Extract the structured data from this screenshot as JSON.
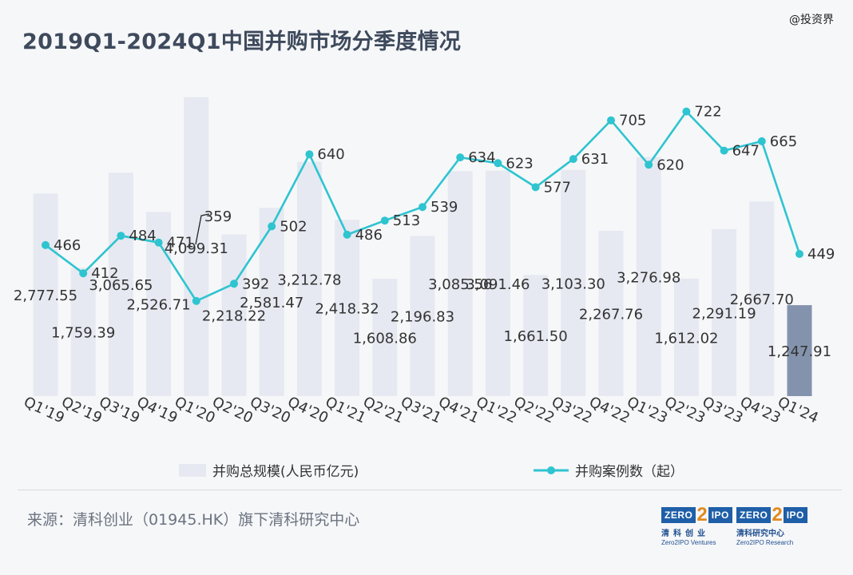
{
  "title": "2019Q1-2024Q1中国并购市场分季度情况",
  "watermark": "@投资界",
  "source": "来源：清科创业（01945.HK）旗下清科研究中心",
  "logos": [
    {
      "top_left": "ZERO",
      "top_mid": "2",
      "top_right": "IPO",
      "cn": "清科创业",
      "en": "Zero2IPO Ventures"
    },
    {
      "top_left": "ZERO",
      "top_mid": "2",
      "top_right": "IPO",
      "cn": "清科研究中心",
      "en": "Zero2IPO Research"
    }
  ],
  "colors": {
    "bar": "#e6e9f1",
    "bar_highlight": "#8493ad",
    "line": "#2ec4d0",
    "text": "#333333"
  },
  "chart_data": {
    "type": "bar+line",
    "categories": [
      "Q1'19",
      "Q2'19",
      "Q3'19",
      "Q4'19",
      "Q1'20",
      "Q2'20",
      "Q3'20",
      "Q4'20",
      "Q1'21",
      "Q2'21",
      "Q3'21",
      "Q4'21",
      "Q1'22",
      "Q2'22",
      "Q3'22",
      "Q4'22",
      "Q1'23",
      "Q2'23",
      "Q3'23",
      "Q4'23",
      "Q1'24"
    ],
    "series": [
      {
        "name": "并购总规模(人民币亿元)",
        "kind": "bar",
        "values": [
          2777.55,
          1759.39,
          3065.65,
          2526.71,
          4099.31,
          2218.22,
          2581.47,
          3212.78,
          2418.32,
          1608.86,
          2196.83,
          3085.56,
          3091.46,
          1661.5,
          3103.3,
          2267.76,
          3276.98,
          1612.02,
          2291.19,
          2667.7,
          1247.91
        ],
        "labels": [
          "2,777.55",
          "1,759.39",
          "3,065.65",
          "2,526.71",
          "4,099.31",
          "2,218.22",
          "2,581.47",
          "3,212.78",
          "2,418.32",
          "1,608.86",
          "2,196.83",
          "3,085.56",
          "3,091.46",
          "1,661.50",
          "3,103.30",
          "2,267.76",
          "3,276.98",
          "1,612.02",
          "2,291.19",
          "2,667.70",
          "1,247.91"
        ],
        "highlight_index": 20
      },
      {
        "name": "并购案例数（起）",
        "kind": "line",
        "values": [
          466,
          412,
          484,
          471,
          359,
          392,
          502,
          640,
          486,
          513,
          539,
          634,
          623,
          577,
          631,
          705,
          620,
          722,
          647,
          665,
          449
        ],
        "labels": [
          "466",
          "412",
          "484",
          "471",
          "359",
          "392",
          "502",
          "640",
          "486",
          "513",
          "539",
          "634",
          "623",
          "577",
          "631",
          "705",
          "620",
          "722",
          "647",
          "665",
          "449"
        ]
      }
    ],
    "legend": "bottom-center",
    "grid": false
  }
}
